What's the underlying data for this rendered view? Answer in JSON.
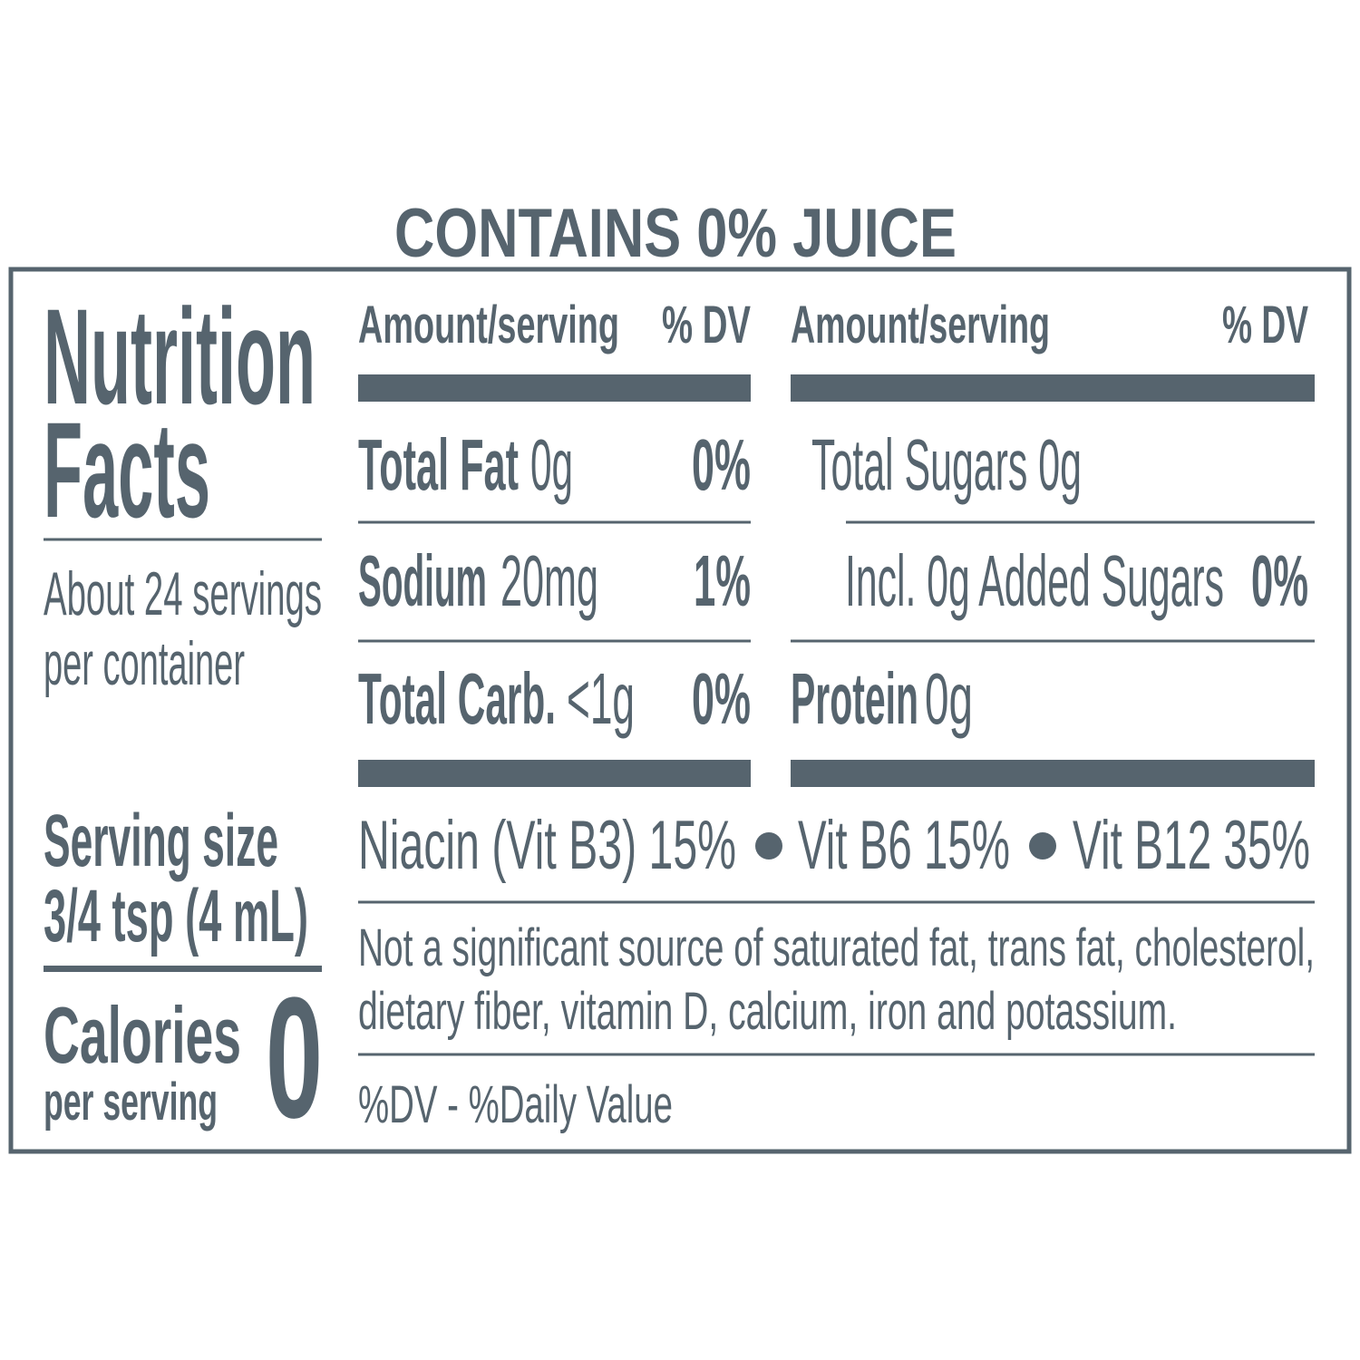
{
  "header": {
    "title": "CONTAINS 0% JUICE"
  },
  "left": {
    "title_line1": "Nutrition",
    "title_line2": "Facts",
    "servings_line1": "About 24 servings",
    "servings_line2": "per container",
    "serving_size_label": "Serving size",
    "serving_size_value": "3/4 tsp (4 mL)",
    "calories_label": "Calories",
    "calories_sub": "per serving",
    "calories_value": "0"
  },
  "column_headers": {
    "left": {
      "amount": "Amount/serving",
      "dv": "% DV"
    },
    "right": {
      "amount": "Amount/serving",
      "dv": "% DV"
    }
  },
  "left_rows": [
    {
      "name": "Total Fat",
      "amount": "0g",
      "dv": "0%"
    },
    {
      "name": "Sodium",
      "amount": "20mg",
      "dv": "1%"
    },
    {
      "name": "Total Carb.",
      "amount": "<1g",
      "dv": "0%"
    }
  ],
  "right_rows": [
    {
      "text": "Total Sugars 0g"
    },
    {
      "text": "Incl. 0g Added Sugars",
      "dv": "0%"
    },
    {
      "name": "Protein",
      "amount": "0g"
    }
  ],
  "vitamins": [
    "Niacin (Vit B3) 15%",
    "Vit B6 15%",
    "Vit B12 35%"
  ],
  "footnote": {
    "lines": [
      "Not a significant source of saturated fat, trans fat, cholesterol,",
      "dietary fiber, vitamin D, calcium, iron and potassium."
    ],
    "dv_note": "%DV - %Daily Value"
  }
}
